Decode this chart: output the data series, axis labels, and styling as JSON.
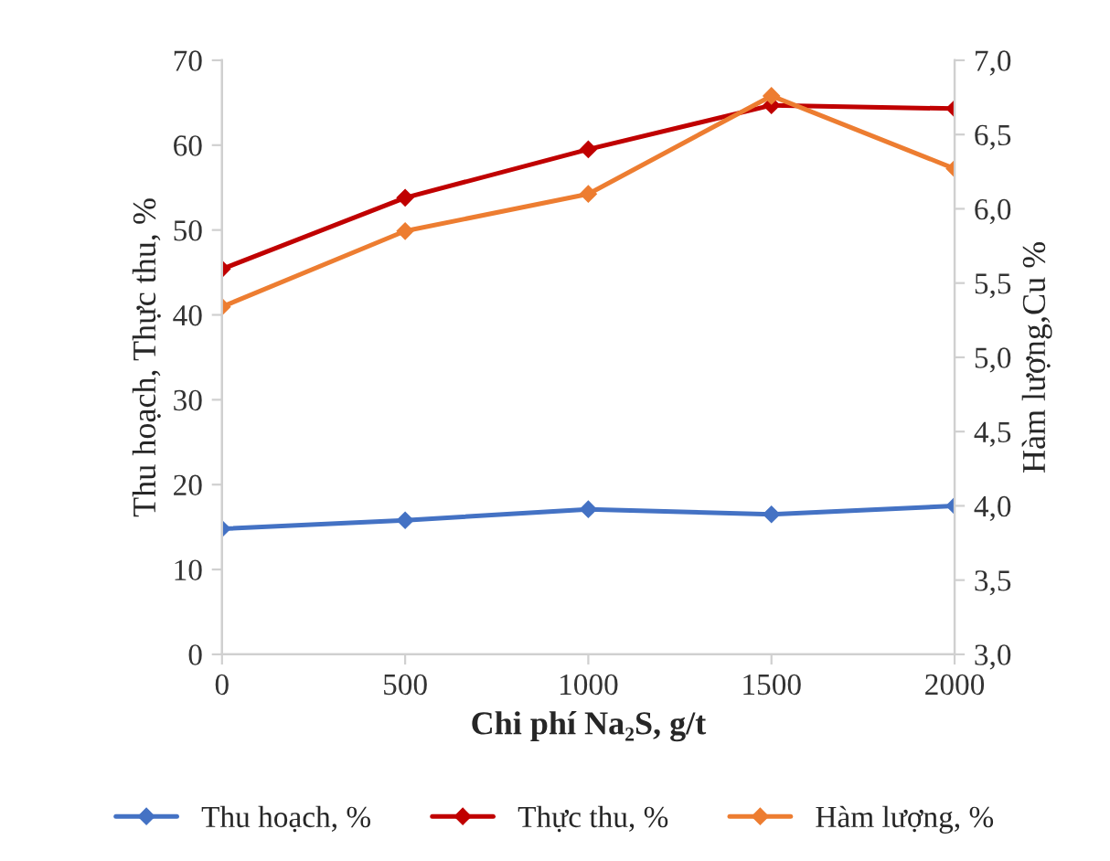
{
  "chart_data": {
    "type": "line",
    "xlabel": "Chi phí Na₂S, g/t",
    "ylabel": "Thu hoạch, Thực thu, %",
    "y2label": "Hàm lượng,Cu %",
    "x": [
      0,
      500,
      1000,
      1500,
      2000
    ],
    "series": [
      {
        "name": "Thu hoạch, %",
        "color": "#4472c4",
        "values": [
          14.8,
          15.8,
          17.1,
          16.5,
          17.5
        ]
      },
      {
        "name": "Thực thu, %",
        "color": "#c00000",
        "values": [
          45.4,
          53.8,
          59.5,
          64.7,
          64.3
        ]
      },
      {
        "name": "Hàm lượng, %",
        "color": "#ed7d31",
        "axis": "y2",
        "values": [
          5.34,
          5.85,
          6.1,
          6.76,
          6.27
        ]
      }
    ],
    "xlim": [
      0,
      2000
    ],
    "xticks": [
      0,
      500,
      1000,
      1500,
      2000
    ],
    "ylim": [
      0,
      70
    ],
    "yticks": [
      0,
      10,
      20,
      30,
      40,
      50,
      60,
      70
    ],
    "y2lim": [
      3.0,
      7.0
    ],
    "y2ticks": [
      {
        "value": 3.0,
        "label": "3,0"
      },
      {
        "value": 3.5,
        "label": "3,5"
      },
      {
        "value": 4.0,
        "label": "4,0"
      },
      {
        "value": 4.5,
        "label": "4,5"
      },
      {
        "value": 5.0,
        "label": "5,0"
      },
      {
        "value": 5.5,
        "label": "5,5"
      },
      {
        "value": 6.0,
        "label": "6,0"
      },
      {
        "value": 6.5,
        "label": "6,5"
      },
      {
        "value": 7.0,
        "label": "7,0"
      }
    ],
    "marker": "diamond",
    "line_style": "solid",
    "grid": false,
    "legend": "bottom"
  }
}
